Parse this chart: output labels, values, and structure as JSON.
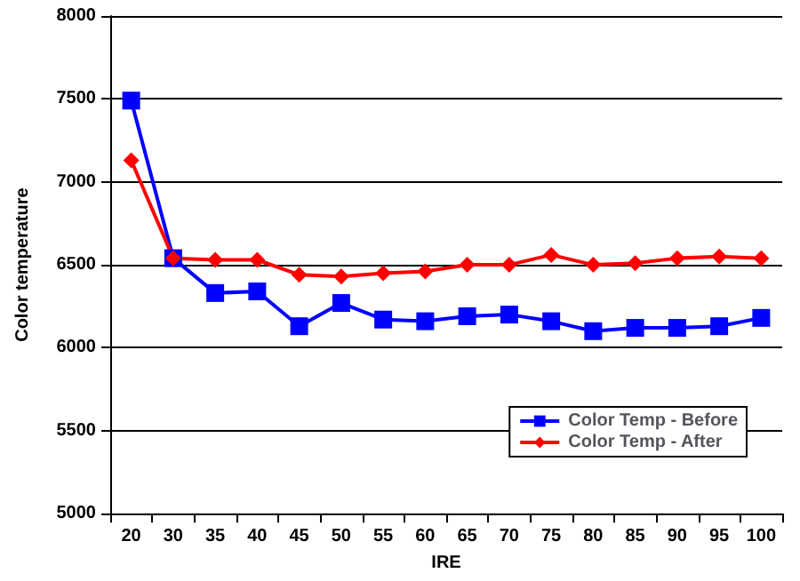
{
  "chart_data": {
    "type": "line",
    "xlabel": "IRE",
    "ylabel": "Color temperature",
    "categories": [
      "20",
      "30",
      "35",
      "40",
      "45",
      "50",
      "55",
      "60",
      "65",
      "70",
      "75",
      "80",
      "85",
      "90",
      "95",
      "100"
    ],
    "series": [
      {
        "name": "Color Temp - Before",
        "color": "#0000ff",
        "marker": "square",
        "values": [
          7490,
          6540,
          6330,
          6340,
          6130,
          6270,
          6170,
          6160,
          6190,
          6200,
          6160,
          6100,
          6120,
          6120,
          6130,
          6180
        ]
      },
      {
        "name": "Color Temp - After",
        "color": "#ff0000",
        "marker": "diamond",
        "values": [
          7130,
          6540,
          6530,
          6530,
          6440,
          6430,
          6450,
          6460,
          6500,
          6500,
          6560,
          6500,
          6510,
          6540,
          6550,
          6540
        ]
      }
    ],
    "ylim": [
      5000,
      8000
    ],
    "yticks": [
      5000,
      5500,
      6000,
      6500,
      7000,
      7500,
      8000
    ],
    "grid": "y",
    "legend": "bottom right"
  }
}
